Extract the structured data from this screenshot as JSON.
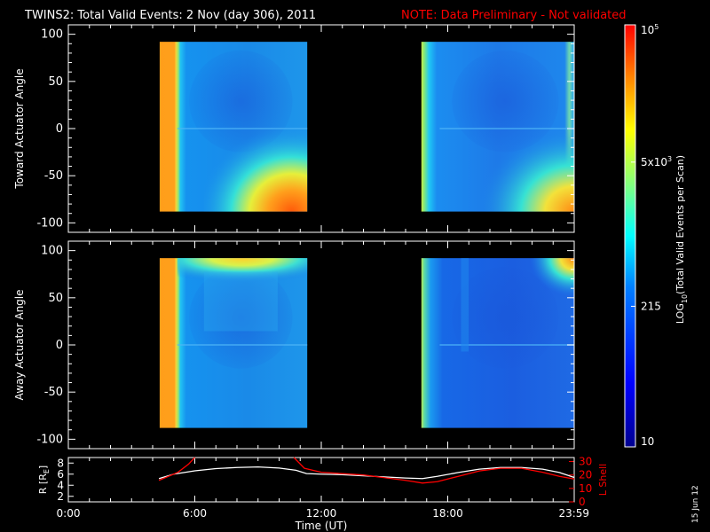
{
  "title": "TWINS2: Total Valid Events:  2 Nov (day 306), 2011",
  "note": "NOTE: Data Preliminary - Not validated",
  "stamp": "15 Jun 12",
  "colors": {
    "background": "#000000",
    "note": "#ff0000",
    "axes": "#ffffff",
    "lshell": "#ff0000",
    "radius": "#ffffff"
  },
  "colorbar": {
    "label_prefix": "LOG",
    "label_sub": "10",
    "label_rest": "(Total Valid Events per Scan)",
    "ticks": [
      {
        "value": 10,
        "text": "10"
      },
      {
        "value": 215,
        "text": "215"
      },
      {
        "value": 5000,
        "mant": "5x10",
        "exp": "3"
      },
      {
        "value": 100000,
        "mant": "10",
        "exp": "5"
      }
    ]
  },
  "chart_data": [
    {
      "type": "heatmap",
      "panel": "top",
      "ylabel": "Toward Actuator Angle",
      "ylim": [
        -110,
        110
      ],
      "yticks": [
        100,
        50,
        0,
        -50,
        -100
      ],
      "xlim_hours": [
        0,
        24
      ],
      "scale": "log",
      "zlim": [
        10,
        100000
      ],
      "data_intervals_ut": [
        [
          "4:20",
          "11:20"
        ],
        [
          "16:45",
          "23:59"
        ]
      ],
      "angle_range": [
        -88,
        92
      ]
    },
    {
      "type": "heatmap",
      "panel": "middle",
      "ylabel": "Away Actuator Angle",
      "ylim": [
        -110,
        110
      ],
      "yticks": [
        100,
        50,
        0,
        -50,
        -100
      ],
      "xlim_hours": [
        0,
        24
      ],
      "scale": "log",
      "zlim": [
        10,
        100000
      ],
      "data_intervals_ut": [
        [
          "4:20",
          "11:20"
        ],
        [
          "16:45",
          "23:59"
        ]
      ],
      "angle_range": [
        -88,
        92
      ]
    },
    {
      "type": "line",
      "panel": "bottom",
      "xlabel": "Time (UT)",
      "xticks": [
        "0:00",
        "6:00",
        "12:00",
        "18:00",
        "23:59"
      ],
      "ylabel_left": "R [R",
      "ylabel_left_sub": "E",
      "ylabel_left_end": "]",
      "ylim_left": [
        1,
        9
      ],
      "yticks_left": [
        8,
        6,
        4,
        2
      ],
      "ylabel_right": "L Shell",
      "ylim_right": [
        0,
        33
      ],
      "yticks_right": [
        30,
        20,
        10,
        0
      ],
      "series": [
        {
          "name": "R",
          "x": [
            4.3,
            5,
            6,
            7,
            8,
            9,
            10,
            10.8,
            11.3,
            12,
            13,
            14,
            15,
            16,
            16.8,
            17.5,
            18.5,
            19.5,
            20.5,
            21.5,
            22.5,
            23.3,
            24
          ],
          "y": [
            5.2,
            6.0,
            6.6,
            7.0,
            7.2,
            7.3,
            7.1,
            6.7,
            6.1,
            6.0,
            5.9,
            5.7,
            5.5,
            5.3,
            5.2,
            5.6,
            6.3,
            6.9,
            7.2,
            7.2,
            6.9,
            6.3,
            5.4
          ]
        },
        {
          "name": "L Shell",
          "x": [
            4.3,
            5.2,
            5.7,
            6.0
          ],
          "y": [
            16,
            22,
            28,
            33
          ]
        },
        {
          "name": "L Shell",
          "x": [
            10.7,
            11.2,
            12,
            13,
            14,
            15,
            16,
            16.8,
            17.5,
            18.5,
            19.5,
            20.5,
            21.5,
            22.5,
            23.3,
            24
          ],
          "y": [
            33,
            25,
            22,
            21,
            20,
            18,
            16,
            14,
            15,
            19,
            23,
            25,
            25,
            22,
            19,
            17
          ]
        }
      ]
    }
  ]
}
